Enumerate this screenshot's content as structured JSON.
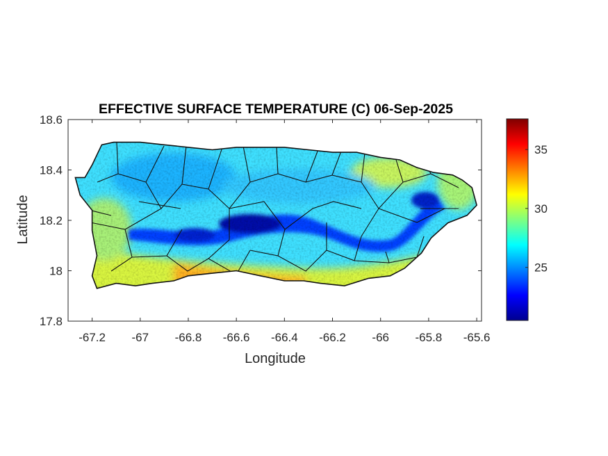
{
  "figure": {
    "title": "EFFECTIVE SURFACE TEMPERATURE (C) 06-Sep-2025",
    "xlabel": "Longitude",
    "ylabel": "Latitude"
  },
  "chart_data": {
    "type": "heatmap",
    "title": "EFFECTIVE SURFACE TEMPERATURE (C) 06-Sep-2025",
    "xlabel": "Longitude",
    "ylabel": "Latitude",
    "xlim": [
      -67.3,
      -65.58
    ],
    "ylim": [
      17.8,
      18.6
    ],
    "xticks": [
      -67.2,
      -67,
      -66.8,
      -66.6,
      -66.4,
      -66.2,
      -66,
      -65.8,
      -65.6
    ],
    "xtick_labels": [
      "-67.2",
      "-67",
      "-66.8",
      "-66.6",
      "-66.4",
      "-66.2",
      "-66",
      "-65.8",
      "-65.6"
    ],
    "yticks": [
      17.8,
      18,
      18.2,
      18.4,
      18.6
    ],
    "ytick_labels": [
      "17.8",
      "18",
      "18.2",
      "18.4",
      "18.6"
    ],
    "colorbar": {
      "colormap": "jet",
      "range": [
        20.5,
        37.6
      ],
      "ticks": [
        25,
        30,
        35
      ],
      "tick_labels": [
        "25",
        "30",
        "35"
      ]
    },
    "grid": false,
    "region_outline": [
      [
        -67.27,
        18.37
      ],
      [
        -67.23,
        18.37
      ],
      [
        -67.2,
        18.42
      ],
      [
        -67.16,
        18.5
      ],
      [
        -67.11,
        18.51
      ],
      [
        -67.0,
        18.51
      ],
      [
        -66.9,
        18.5
      ],
      [
        -66.8,
        18.49
      ],
      [
        -66.7,
        18.48
      ],
      [
        -66.6,
        18.49
      ],
      [
        -66.5,
        18.49
      ],
      [
        -66.4,
        18.49
      ],
      [
        -66.3,
        18.48
      ],
      [
        -66.2,
        18.47
      ],
      [
        -66.1,
        18.47
      ],
      [
        -66.0,
        18.45
      ],
      [
        -65.92,
        18.44
      ],
      [
        -65.85,
        18.41
      ],
      [
        -65.78,
        18.39
      ],
      [
        -65.7,
        18.38
      ],
      [
        -65.66,
        18.36
      ],
      [
        -65.62,
        18.33
      ],
      [
        -65.6,
        18.26
      ],
      [
        -65.64,
        18.22
      ],
      [
        -65.72,
        18.19
      ],
      [
        -65.79,
        18.13
      ],
      [
        -65.83,
        18.07
      ],
      [
        -65.9,
        18.01
      ],
      [
        -65.96,
        17.98
      ],
      [
        -66.05,
        17.97
      ],
      [
        -66.15,
        17.94
      ],
      [
        -66.25,
        17.95
      ],
      [
        -66.32,
        17.96
      ],
      [
        -66.4,
        17.96
      ],
      [
        -66.5,
        17.98
      ],
      [
        -66.6,
        18.0
      ],
      [
        -66.7,
        17.99
      ],
      [
        -66.8,
        17.98
      ],
      [
        -66.86,
        17.96
      ],
      [
        -66.95,
        17.95
      ],
      [
        -67.02,
        17.94
      ],
      [
        -67.1,
        17.95
      ],
      [
        -67.18,
        17.93
      ],
      [
        -67.2,
        17.98
      ],
      [
        -67.18,
        18.06
      ],
      [
        -67.2,
        18.16
      ],
      [
        -67.2,
        18.24
      ],
      [
        -67.25,
        18.3
      ],
      [
        -67.27,
        18.37
      ]
    ],
    "cold_ridges": [
      {
        "lon": -66.5,
        "lat": 18.19,
        "value": 21.5
      },
      {
        "lon": -66.75,
        "lat": 18.15,
        "value": 22.5
      },
      {
        "lon": -66.05,
        "lat": 18.1,
        "value": 23.0
      },
      {
        "lon": -65.8,
        "lat": 18.28,
        "value": 22.5
      }
    ],
    "hot_spots": [
      {
        "lon": -66.6,
        "lat": 17.99,
        "value": 33.0
      },
      {
        "lon": -66.9,
        "lat": 17.98,
        "value": 32.0
      },
      {
        "lon": -66.35,
        "lat": 17.98,
        "value": 31.5
      },
      {
        "lon": -65.95,
        "lat": 18.41,
        "value": 30.5
      }
    ]
  }
}
